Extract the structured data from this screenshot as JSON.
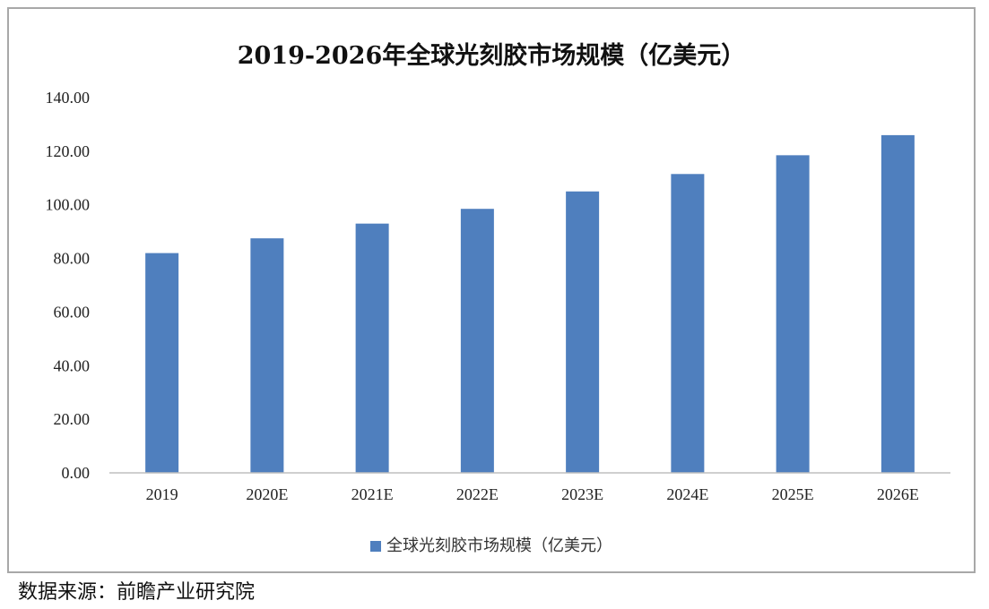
{
  "source": "数据来源：前瞻产业研究院",
  "colors": {
    "bar": "#4f7fbe",
    "axis": "#bfbfbf"
  },
  "chart_data": {
    "type": "bar",
    "title": "2019-2026年全球光刻胶市场规模（亿美元）",
    "categories": [
      "2019",
      "2020E",
      "2021E",
      "2022E",
      "2023E",
      "2024E",
      "2025E",
      "2026E"
    ],
    "series": [
      {
        "name": "全球光刻胶市场规模（亿美元）",
        "values": [
          82.0,
          87.5,
          93.0,
          98.5,
          105.0,
          111.5,
          118.5,
          126.0
        ]
      }
    ],
    "yticks": [
      "0.00",
      "20.00",
      "40.00",
      "60.00",
      "80.00",
      "100.00",
      "120.00",
      "140.00"
    ],
    "ylim": [
      0,
      140
    ],
    "xlabel": "",
    "ylabel": "",
    "grid": false,
    "legend_position": "bottom"
  }
}
